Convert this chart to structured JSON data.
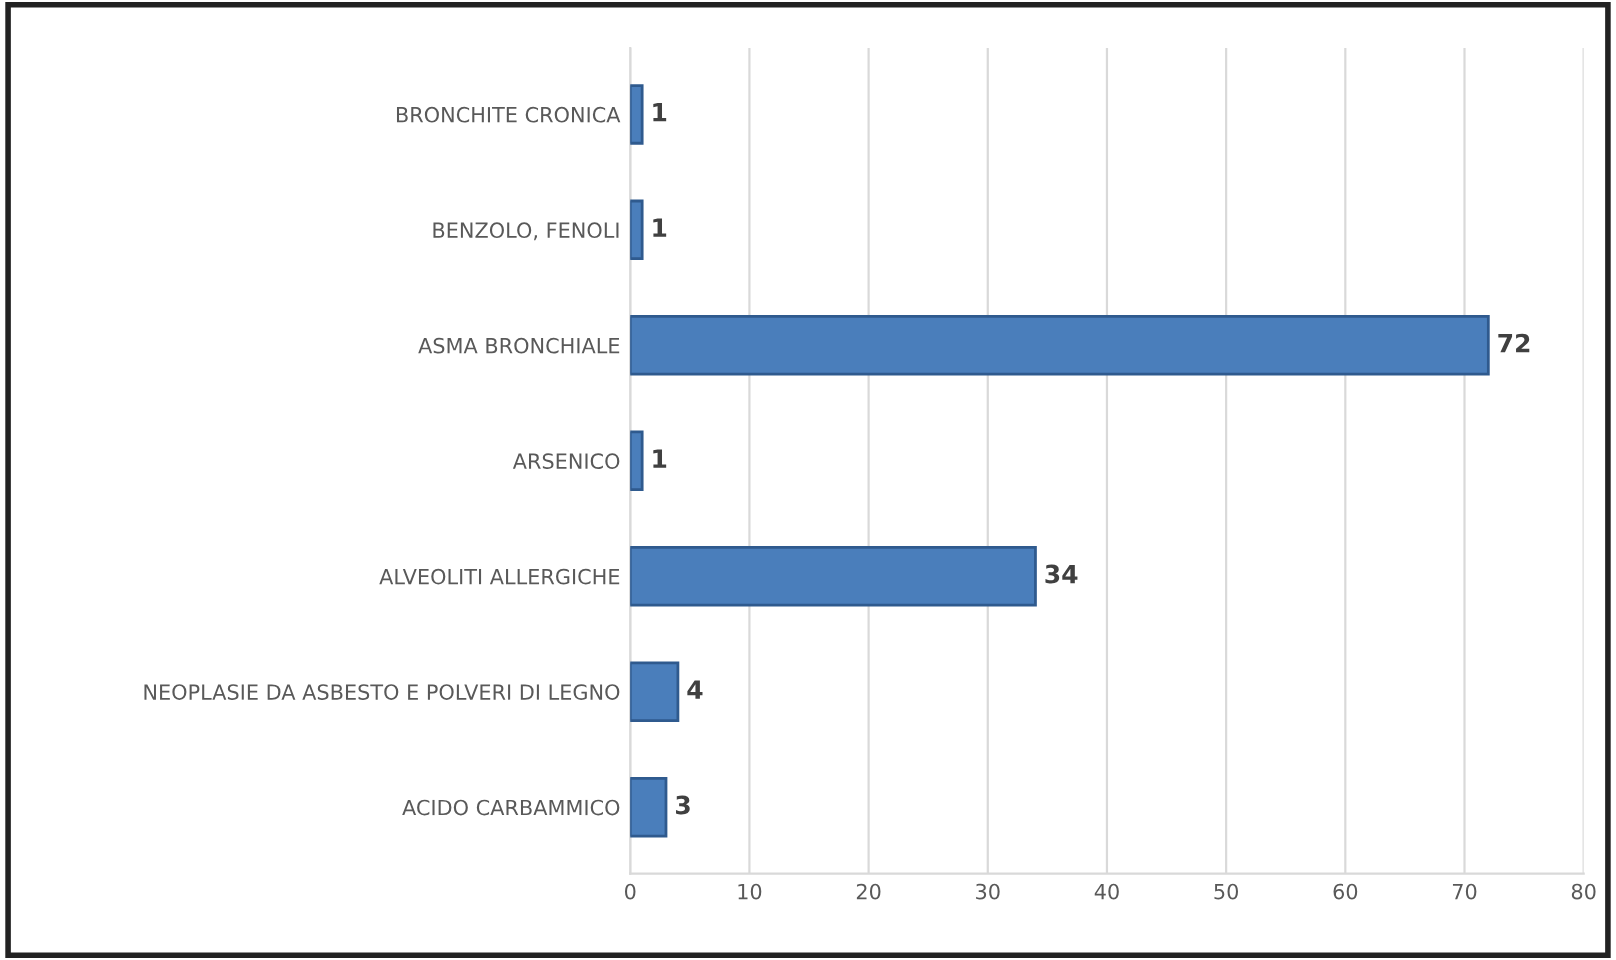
{
  "chart_data": {
    "type": "bar",
    "orientation": "horizontal",
    "categories": [
      "BRONCHITE CRONICA",
      "BENZOLO, FENOLI",
      "ASMA BRONCHIALE",
      "ARSENICO",
      "ALVEOLITI ALLERGICHE",
      "NEOPLASIE DA ASBESTO E POLVERI DI LEGNO",
      "ACIDO CARBAMMICO"
    ],
    "values": [
      1,
      1,
      72,
      1,
      34,
      4,
      3
    ],
    "color": "#4a7ebb",
    "xlim": [
      0,
      80
    ],
    "xticks": [
      0,
      10,
      20,
      30,
      40,
      50,
      60,
      70,
      80
    ],
    "grid": "x",
    "data_labels": true
  }
}
